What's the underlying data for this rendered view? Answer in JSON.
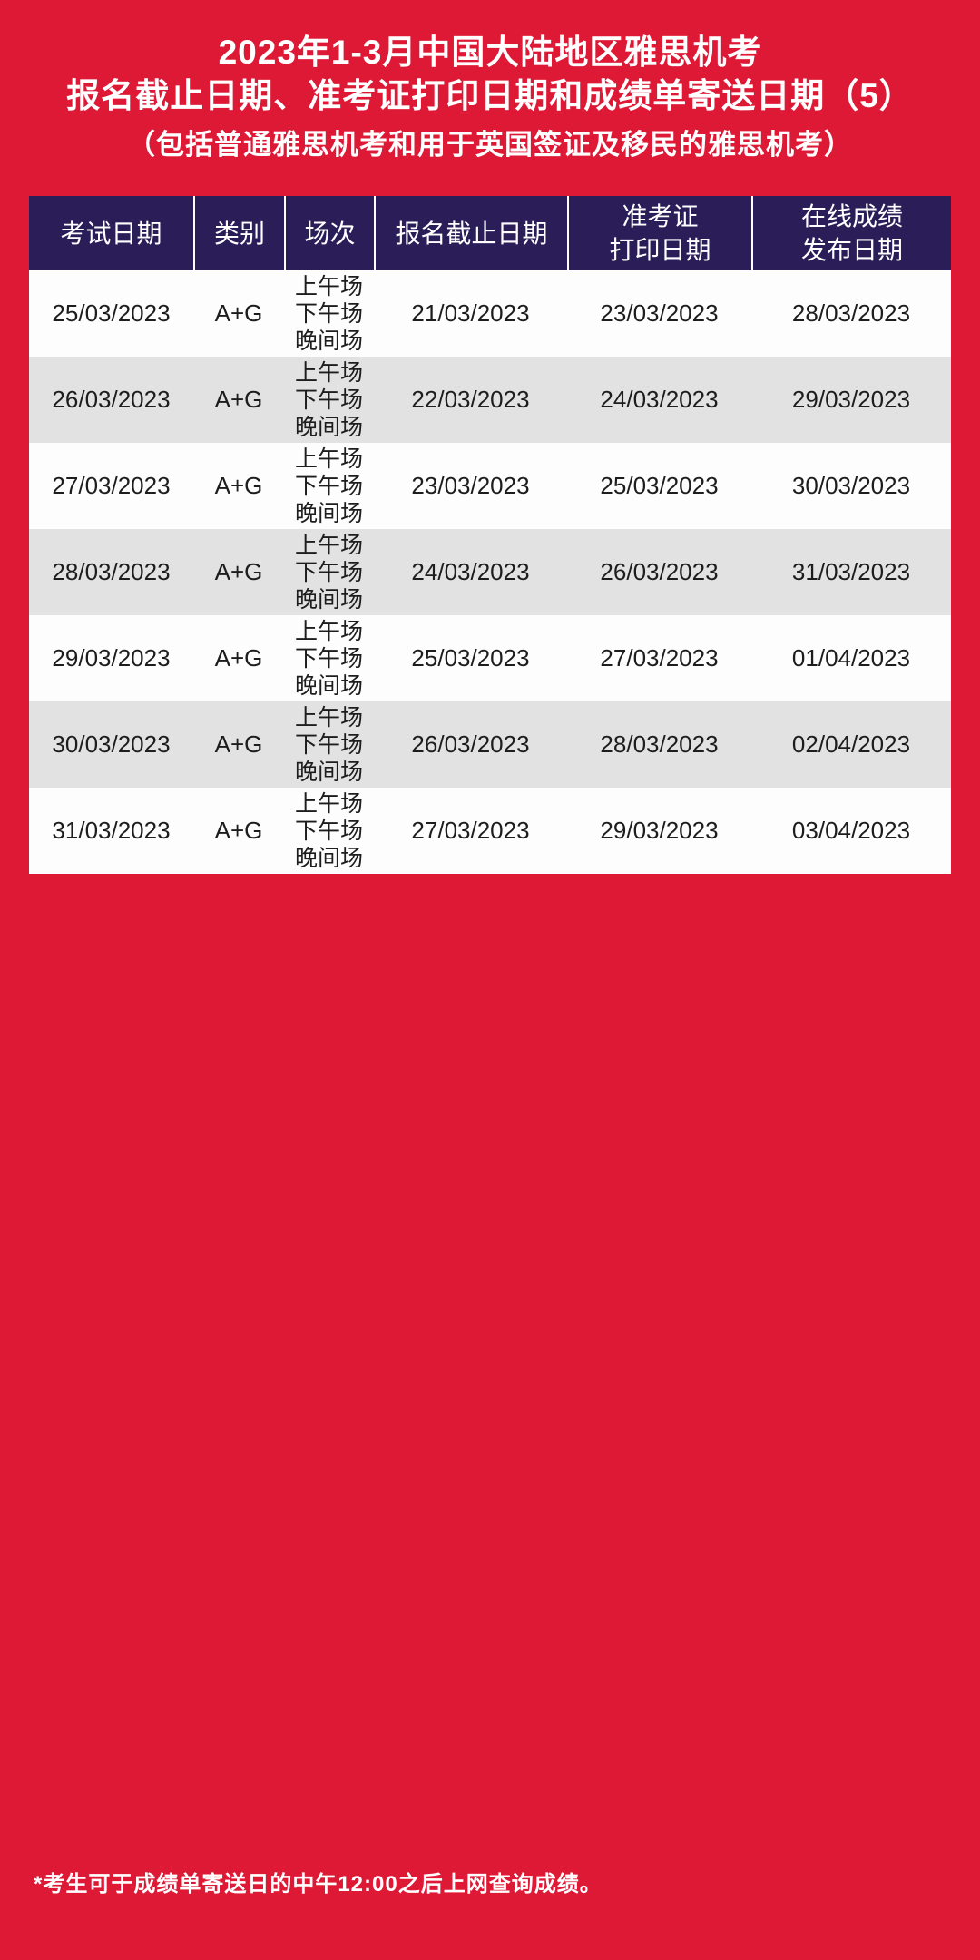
{
  "title": {
    "line1": "2023年1-3月中国大陆地区雅思机考",
    "line2": "报名截止日期、准考证打印日期和成绩单寄送日期（5）",
    "line3": "（包括普通雅思机考和用于英国签证及移民的雅思机考）"
  },
  "table": {
    "columns": [
      "考试日期",
      "类别",
      "场次",
      "报名截止日期",
      "准考证\n打印日期",
      "在线成绩\n发布日期"
    ],
    "rows": [
      {
        "exam_date": "25/03/2023",
        "category": "A+G",
        "sessions": "上午场\n下午场\n晚间场",
        "registration_deadline": "21/03/2023",
        "print_date": "23/03/2023",
        "score_date": "28/03/2023"
      },
      {
        "exam_date": "26/03/2023",
        "category": "A+G",
        "sessions": "上午场\n下午场\n晚间场",
        "registration_deadline": "22/03/2023",
        "print_date": "24/03/2023",
        "score_date": "29/03/2023"
      },
      {
        "exam_date": "27/03/2023",
        "category": "A+G",
        "sessions": "上午场\n下午场\n晚间场",
        "registration_deadline": "23/03/2023",
        "print_date": "25/03/2023",
        "score_date": "30/03/2023"
      },
      {
        "exam_date": "28/03/2023",
        "category": "A+G",
        "sessions": "上午场\n下午场\n晚间场",
        "registration_deadline": "24/03/2023",
        "print_date": "26/03/2023",
        "score_date": "31/03/2023"
      },
      {
        "exam_date": "29/03/2023",
        "category": "A+G",
        "sessions": "上午场\n下午场\n晚间场",
        "registration_deadline": "25/03/2023",
        "print_date": "27/03/2023",
        "score_date": "01/04/2023"
      },
      {
        "exam_date": "30/03/2023",
        "category": "A+G",
        "sessions": "上午场\n下午场\n晚间场",
        "registration_deadline": "26/03/2023",
        "print_date": "28/03/2023",
        "score_date": "02/04/2023"
      },
      {
        "exam_date": "31/03/2023",
        "category": "A+G",
        "sessions": "上午场\n下午场\n晚间场",
        "registration_deadline": "27/03/2023",
        "print_date": "29/03/2023",
        "score_date": "03/04/2023"
      }
    ]
  },
  "footnote": "*考生可于成绩单寄送日的中午12:00之后上网查询成绩。",
  "colors": {
    "background": "#de1936",
    "header_bg": "#2b1d58",
    "row_bg": "#fdfdfd",
    "row_alt_bg": "#e3e2e2",
    "header_text": "#ffffff",
    "body_text": "#1d1d1d"
  }
}
